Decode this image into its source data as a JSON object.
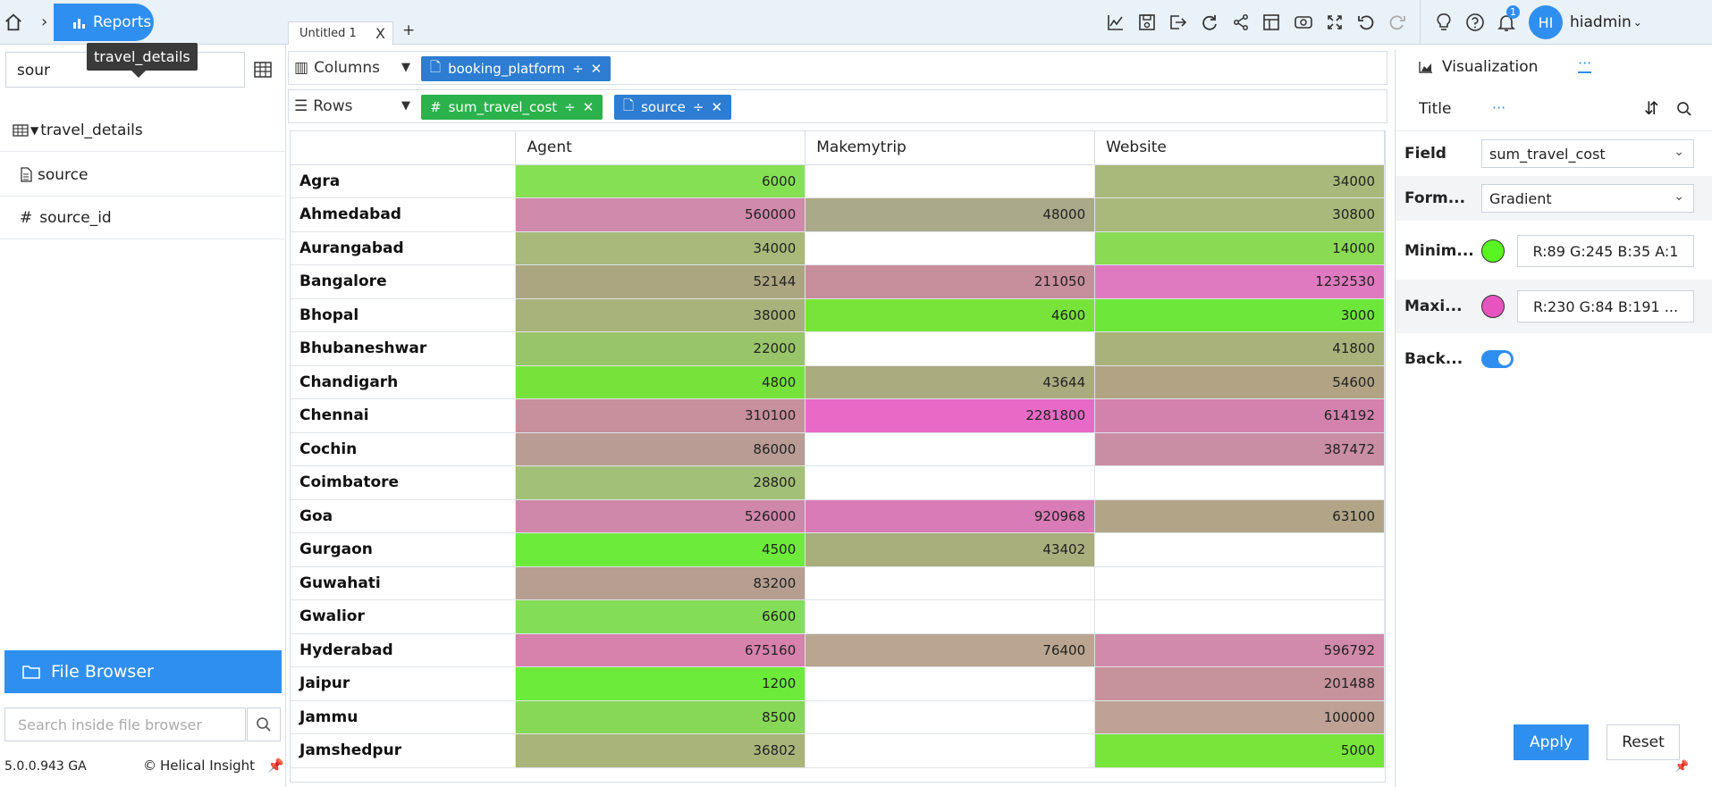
{
  "header": {
    "reports_label": "Reports",
    "tooltip": "travel_details",
    "tab_title": "Untitled 1",
    "tab_close": "X",
    "add_tab": "+",
    "notification_count": "1",
    "avatar_initials": "HI",
    "username": "hiadmin",
    "toolbar_icons": [
      "line-chart-icon",
      "save-icon",
      "export-icon",
      "refresh-icon",
      "share-icon",
      "layout-icon",
      "preview-icon",
      "fullscreen-icon",
      "undo-icon",
      "redo-icon",
      "lightbulb-icon",
      "help-icon",
      "bell-icon"
    ]
  },
  "left": {
    "search_value": "sour",
    "tree": [
      {
        "icon": "table-icon",
        "label": "travel_details"
      },
      {
        "icon": "text-field-icon",
        "label": "source"
      },
      {
        "icon": "hash-icon",
        "label": "source_id"
      }
    ],
    "file_browser": "File Browser",
    "file_search_placeholder": "Search inside file browser",
    "version": "5.0.0.943 GA",
    "brand": "Helical Insight"
  },
  "shelves": {
    "columns_label": "Columns",
    "rows_label": "Rows",
    "column_pills": [
      {
        "label": "booking_platform",
        "color": "#2d7dd2"
      }
    ],
    "row_pills": [
      {
        "label": "sum_travel_cost",
        "color": "#2bb24c"
      },
      {
        "label": "source",
        "color": "#2d7dd2"
      }
    ]
  },
  "table": {
    "columns": [
      "Agent",
      "Makemytrip",
      "Website"
    ],
    "rows": [
      {
        "city": "Agra",
        "cells": [
          {
            "v": "6000",
            "c": "#85e053"
          },
          {
            "v": "",
            "c": "#ffffff"
          },
          {
            "v": "34000",
            "c": "#a8b97b"
          }
        ]
      },
      {
        "city": "Ahmedabad",
        "cells": [
          {
            "v": "560000",
            "c": "#d08aaa"
          },
          {
            "v": "48000",
            "c": "#aaa98a"
          },
          {
            "v": "30800",
            "c": "#a8b97b"
          }
        ]
      },
      {
        "city": "Aurangabad",
        "cells": [
          {
            "v": "34000",
            "c": "#a8b97b"
          },
          {
            "v": "",
            "c": "#ffffff"
          },
          {
            "v": "14000",
            "c": "#8ada53"
          }
        ]
      },
      {
        "city": "Bangalore",
        "cells": [
          {
            "v": "52144",
            "c": "#aba580"
          },
          {
            "v": "211050",
            "c": "#c78e9c"
          },
          {
            "v": "1232530",
            "c": "#e07ac0"
          }
        ]
      },
      {
        "city": "Bhopal",
        "cells": [
          {
            "v": "38000",
            "c": "#a8b27b"
          },
          {
            "v": "4600",
            "c": "#78e43a"
          },
          {
            "v": "3000",
            "c": "#6de83a"
          }
        ]
      },
      {
        "city": "Bhubaneshwar",
        "cells": [
          {
            "v": "22000",
            "c": "#99c56a"
          },
          {
            "v": "",
            "c": "#ffffff"
          },
          {
            "v": "41800",
            "c": "#aab27b"
          }
        ]
      },
      {
        "city": "Chandigarh",
        "cells": [
          {
            "v": "4800",
            "c": "#77e33a"
          },
          {
            "v": "43644",
            "c": "#aaab7f"
          },
          {
            "v": "54600",
            "c": "#b2a385"
          }
        ]
      },
      {
        "city": "Chennai",
        "cells": [
          {
            "v": "310100",
            "c": "#c88f9c"
          },
          {
            "v": "2281800",
            "c": "#e86ac6"
          },
          {
            "v": "614192",
            "c": "#d282ad"
          }
        ]
      },
      {
        "city": "Cochin",
        "cells": [
          {
            "v": "86000",
            "c": "#b99c94"
          },
          {
            "v": "",
            "c": "#ffffff"
          },
          {
            "v": "387472",
            "c": "#c98ea3"
          }
        ]
      },
      {
        "city": "Coimbatore",
        "cells": [
          {
            "v": "28800",
            "c": "#a2c077"
          },
          {
            "v": "",
            "c": "#ffffff"
          },
          {
            "v": "",
            "c": "#ffffff"
          }
        ]
      },
      {
        "city": "Goa",
        "cells": [
          {
            "v": "526000",
            "c": "#cf87aa"
          },
          {
            "v": "920968",
            "c": "#d97bb7"
          },
          {
            "v": "63100",
            "c": "#b2a587"
          }
        ]
      },
      {
        "city": "Gurgaon",
        "cells": [
          {
            "v": "4500",
            "c": "#6deb3a"
          },
          {
            "v": "43402",
            "c": "#a9ae7d"
          },
          {
            "v": "",
            "c": "#ffffff"
          }
        ]
      },
      {
        "city": "Guwahati",
        "cells": [
          {
            "v": "83200",
            "c": "#b69e90"
          },
          {
            "v": "",
            "c": "#ffffff"
          },
          {
            "v": "",
            "c": "#ffffff"
          }
        ]
      },
      {
        "city": "Gwalior",
        "cells": [
          {
            "v": "6600",
            "c": "#83dd57"
          },
          {
            "v": "",
            "c": "#ffffff"
          },
          {
            "v": "",
            "c": "#ffffff"
          }
        ]
      },
      {
        "city": "Hyderabad",
        "cells": [
          {
            "v": "675160",
            "c": "#d682ad"
          },
          {
            "v": "76400",
            "c": "#b9a590"
          },
          {
            "v": "596792",
            "c": "#d18aaa"
          }
        ]
      },
      {
        "city": "Jaipur",
        "cells": [
          {
            "v": "1200",
            "c": "#6deb3a"
          },
          {
            "v": "",
            "c": "#ffffff"
          },
          {
            "v": "201488",
            "c": "#c6929c"
          }
        ]
      },
      {
        "city": "Jammu",
        "cells": [
          {
            "v": "8500",
            "c": "#87d857"
          },
          {
            "v": "",
            "c": "#ffffff"
          },
          {
            "v": "100000",
            "c": "#bfa195"
          }
        ]
      },
      {
        "city": "Jamshedpur",
        "cells": [
          {
            "v": "36802",
            "c": "#a9b47b"
          },
          {
            "v": "",
            "c": "#ffffff"
          },
          {
            "v": "5000",
            "c": "#78e53a"
          }
        ]
      }
    ]
  },
  "right": {
    "viz_label": "Visualization",
    "title_label": "Title",
    "ellipsis": "···",
    "field_label": "Field",
    "field_value": "sum_travel_cost",
    "format_label": "Form...",
    "format_value": "Gradient",
    "min_label": "Minim...",
    "min_color": "#59f523",
    "min_value": "R:89 G:245 B:35 A:1",
    "max_label": "Maxi...",
    "max_color": "#e654bf",
    "max_value": "R:230 G:84 B:191 ...",
    "background_label": "Back...",
    "apply": "Apply",
    "reset": "Reset"
  }
}
